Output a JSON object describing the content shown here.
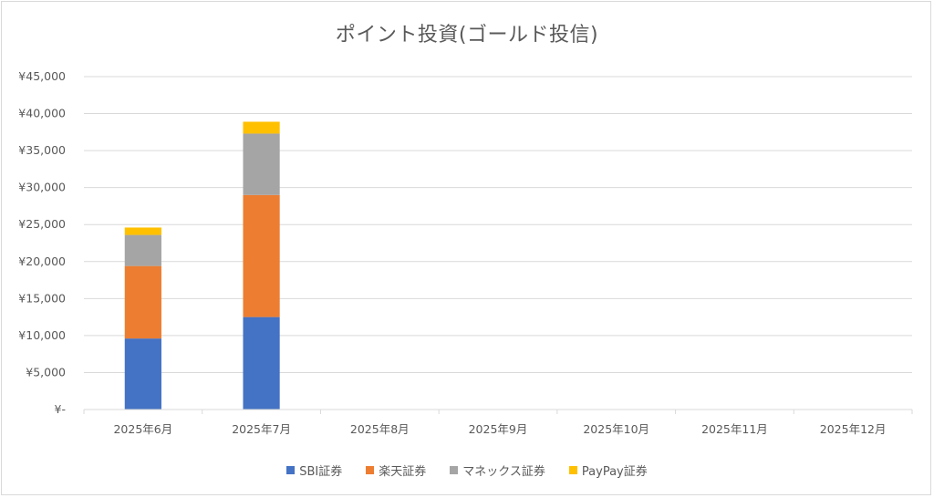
{
  "chart_data": {
    "type": "bar",
    "stacked": true,
    "title": "ポイント投資(ゴールド投信)",
    "categories": [
      "2025年6月",
      "2025年7月",
      "2025年8月",
      "2025年9月",
      "2025年10月",
      "2025年11月",
      "2025年12月"
    ],
    "series": [
      {
        "name": "SBI証券",
        "color": "#4472C4",
        "values": [
          9600,
          12500,
          null,
          null,
          null,
          null,
          null
        ]
      },
      {
        "name": "楽天証券",
        "color": "#ED7D31",
        "values": [
          9800,
          16500,
          null,
          null,
          null,
          null,
          null
        ]
      },
      {
        "name": "マネックス証券",
        "color": "#A5A5A5",
        "values": [
          4200,
          8300,
          null,
          null,
          null,
          null,
          null
        ]
      },
      {
        "name": "PayPay証券",
        "color": "#FFC000",
        "values": [
          1000,
          1600,
          null,
          null,
          null,
          null,
          null
        ]
      }
    ],
    "yticks": [
      "¥-",
      "¥5,000",
      "¥10,000",
      "¥15,000",
      "¥20,000",
      "¥25,000",
      "¥30,000",
      "¥35,000",
      "¥40,000",
      "¥45,000"
    ],
    "ylim": [
      0,
      45000
    ],
    "grid": true,
    "legend_position": "bottom"
  }
}
